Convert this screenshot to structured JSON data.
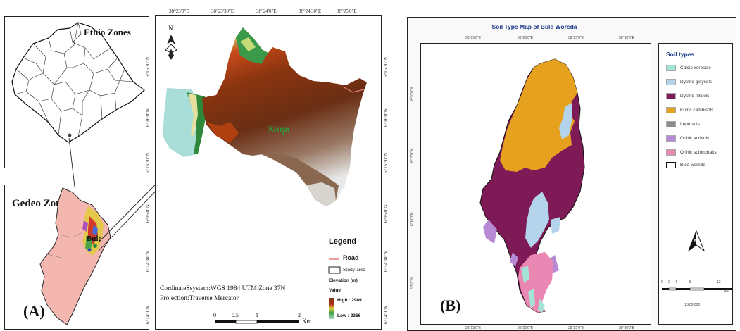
{
  "panel_a": {
    "label": "(A)",
    "ethio_title": "Ethio Zones",
    "gedeo_title": "Gedeo Zone",
    "bule_label": "Bule",
    "suqo_label": "Suqo",
    "north": "N",
    "top_ticks": [
      "38°23'0\"E",
      "38°23'30\"E",
      "38°24'0\"E",
      "38°24'30\"E",
      "38°25'0\"E"
    ],
    "left_ticks": [
      "6°16'30\"N",
      "6°16'0\"N",
      "6°15'30\"N",
      "6°15'0\"N",
      "6°14'30\"N",
      "6°14'0\"N"
    ],
    "coordinate_system": "CordinateSsystem:WGS 1984  UTM Zone 37N",
    "projection": "Projection:Traverse Mercator",
    "scale": {
      "ticks": [
        "0",
        "0.5",
        "1",
        "2"
      ],
      "unit": "Km"
    },
    "legend": {
      "title": "Legend",
      "road": "Road",
      "study_area": "Study area",
      "elevation_title": "Elevation (m)",
      "value_label": "Value",
      "high": "High : 2989",
      "low": "Low : 2366",
      "colors": {
        "road": "#e08080",
        "high": "#7a3a10",
        "low": "#a8d8c0"
      }
    }
  },
  "panel_b": {
    "label": "(B)",
    "title": "Soil Type Map of Bule Woreda",
    "top_ticks": [
      "38°15'0\"E",
      "38°20'0\"E",
      "38°25'0\"E",
      "38°30'0\"E"
    ],
    "bottom_ticks": [
      "38°15'0\"E",
      "38°20'0\"E",
      "38°25'0\"E",
      "38°30'0\"E"
    ],
    "left_ticks": [
      "6°20'0\"N",
      "6°15'0\"N",
      "6°10'0\"N",
      "6°5'0\"N"
    ],
    "legend_title": "Soil types",
    "soil_types": [
      {
        "name": "Calcic xerosols",
        "color": "#a6e3d7"
      },
      {
        "name": "Dystric gleysols",
        "color": "#b3d4ea"
      },
      {
        "name": "Dystric nitisols",
        "color": "#7e1a55"
      },
      {
        "name": "Eutric cambisols",
        "color": "#e6a21e"
      },
      {
        "name": "Leptosols",
        "color": "#8c8c8c"
      },
      {
        "name": "Orthic acrisols",
        "color": "#b88ad6"
      },
      {
        "name": "Orthic solonchaks",
        "color": "#ea88b3"
      },
      {
        "name": "Bule woreda",
        "color": "#ffffff"
      }
    ],
    "north": "N",
    "scale": {
      "ticks": [
        "0",
        "2",
        "4",
        "8",
        "12"
      ],
      "unit": "Km",
      "ratio": "1:200,000"
    }
  }
}
